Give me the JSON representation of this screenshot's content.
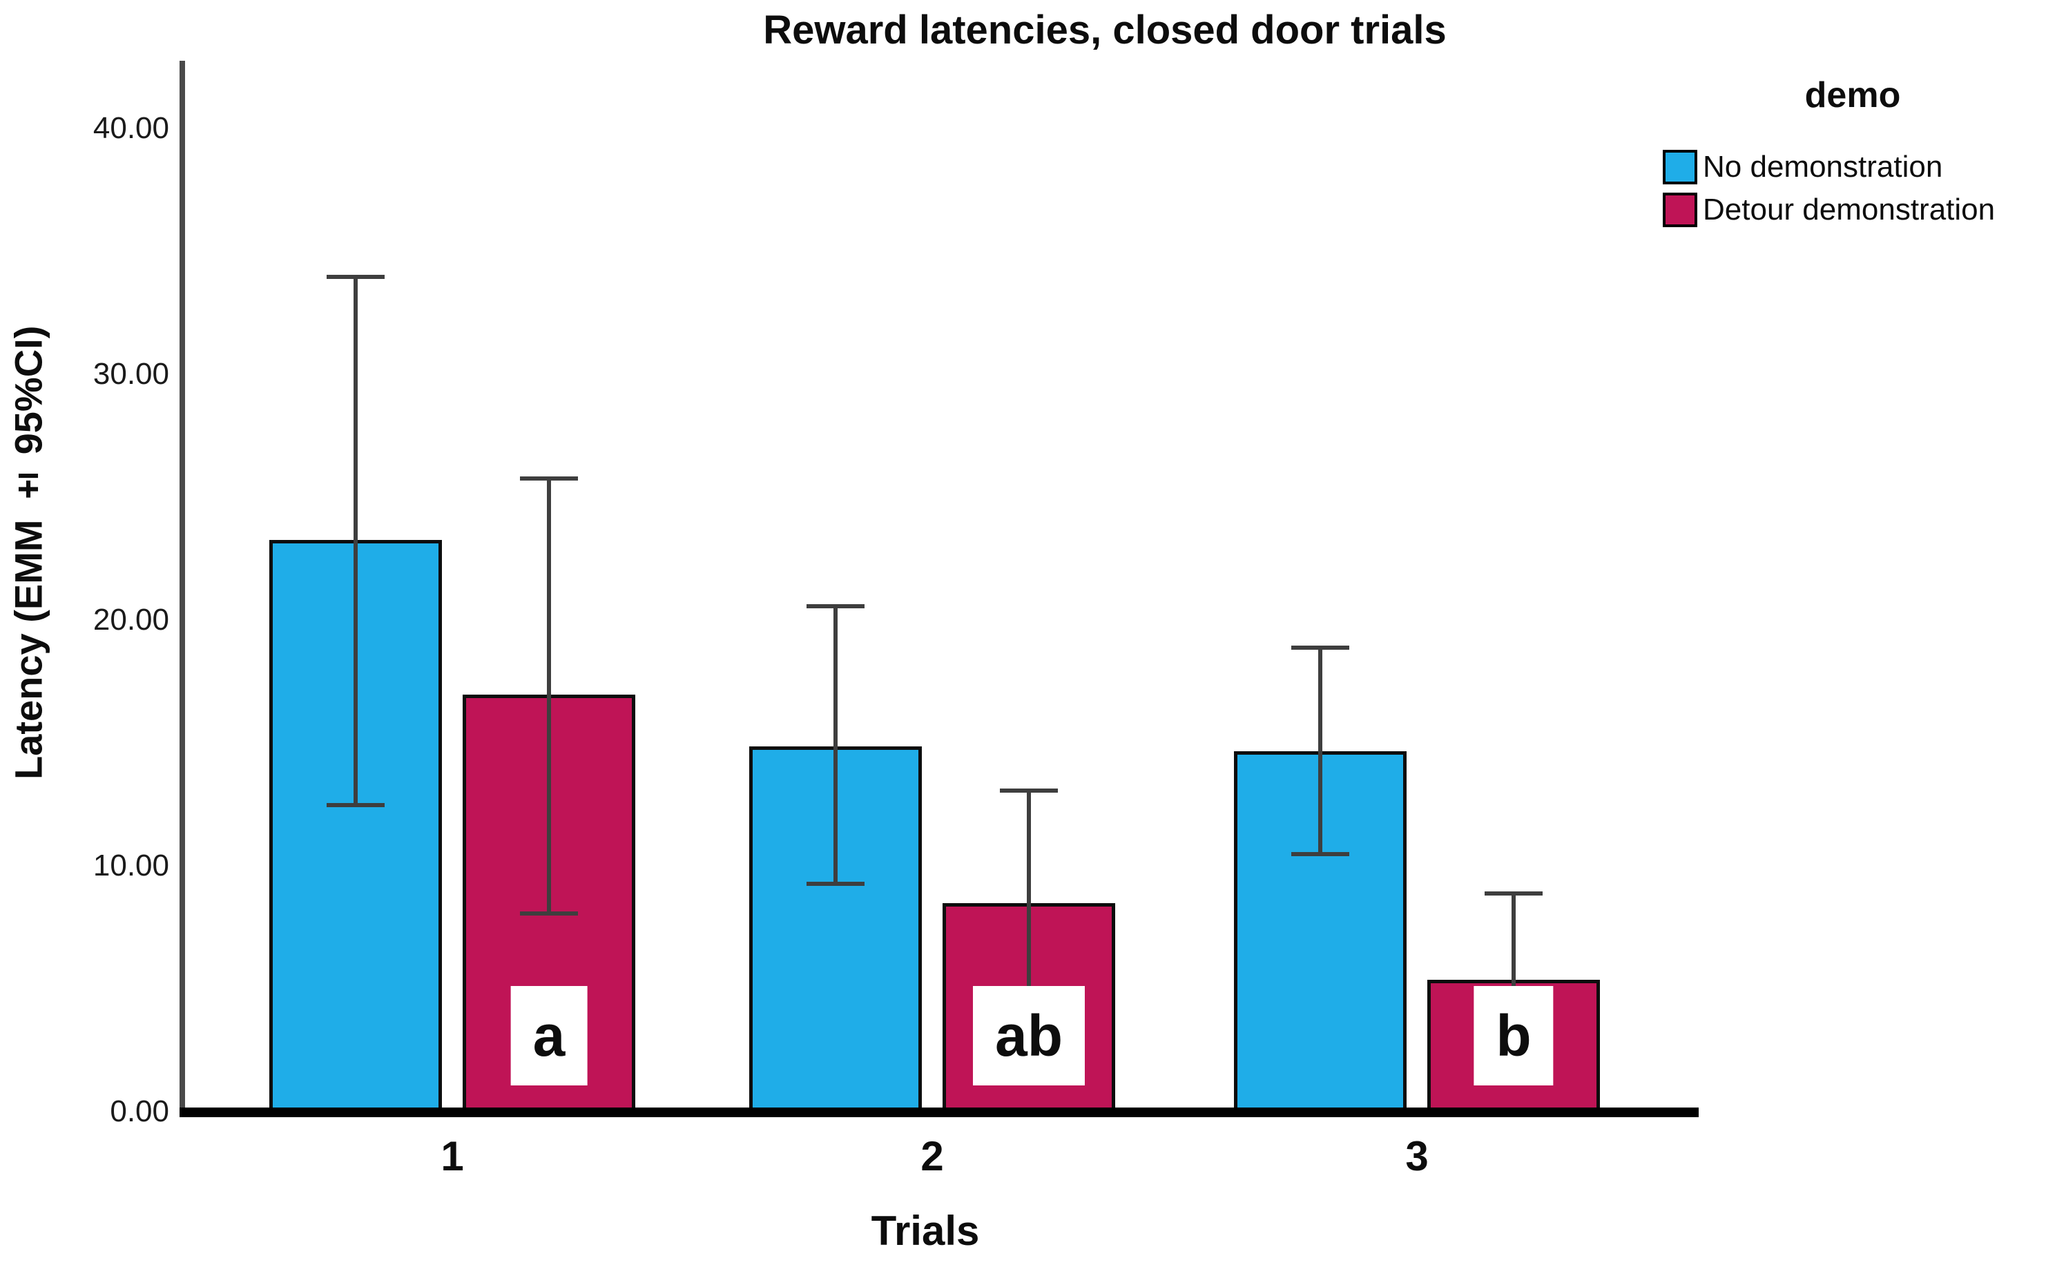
{
  "title": "Reward latencies, closed door trials",
  "legend": {
    "title": "demo",
    "items": [
      {
        "label": "No demonstration",
        "color": "#1fade8"
      },
      {
        "label": "Detour demonstration",
        "color": "#bf1456"
      }
    ]
  },
  "chart_data": {
    "type": "bar",
    "title": "Reward latencies, closed door trials",
    "xlabel": "Trials",
    "ylabel": "Latency (EMM ± 95%CI)",
    "categories": [
      "1",
      "2",
      "3"
    ],
    "ylim": [
      0,
      42.5
    ],
    "ytick_values": [
      0,
      10,
      20,
      30,
      40
    ],
    "ytick_labels": [
      "0.00",
      "10.00",
      "20.00",
      "30.00",
      "40.00"
    ],
    "grid": false,
    "legend_position": "top-right",
    "error_bars": "95% CI",
    "series": [
      {
        "name": "No demonstration",
        "color": "#1fade8",
        "values": [
          23.3,
          14.9,
          14.7
        ],
        "ci_upper": [
          34.0,
          20.6,
          18.9
        ],
        "ci_lower": [
          12.5,
          9.3,
          10.5
        ]
      },
      {
        "name": "Detour demonstration",
        "color": "#bf1456",
        "values": [
          17.0,
          8.5,
          5.4
        ],
        "ci_upper": [
          25.8,
          13.1,
          8.9
        ],
        "ci_lower": [
          8.1,
          3.9,
          1.9
        ],
        "sig_letters": [
          "a",
          "ab",
          "b"
        ]
      }
    ]
  }
}
